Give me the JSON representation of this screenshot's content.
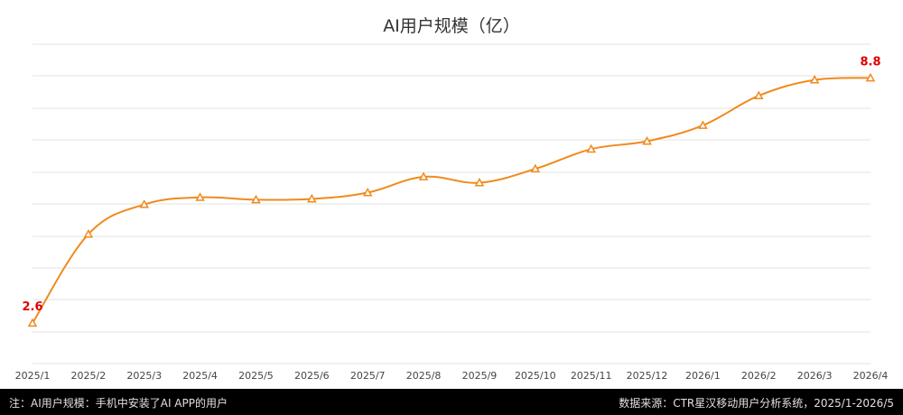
{
  "chart_data": {
    "type": "line",
    "title": "AI用户规模（亿）",
    "xlabel": "",
    "ylabel": "",
    "categories": [
      "2025/1",
      "2025/2",
      "2025/3",
      "2025/4",
      "2025/5",
      "2025/6",
      "2025/7",
      "2025/8",
      "2025/9",
      "2025/10",
      "2025/11",
      "2025/12",
      "2026/1",
      "2026/2",
      "2026/3",
      "2026/4"
    ],
    "series": [
      {
        "values": [
          2.6,
          4.85,
          5.6,
          5.78,
          5.72,
          5.74,
          5.9,
          6.3,
          6.15,
          6.5,
          7.0,
          7.2,
          7.6,
          8.35,
          8.75,
          8.8
        ],
        "color": "#f08a1c",
        "marker": "triangle"
      }
    ],
    "data_labels": [
      {
        "index": 0,
        "text": "2.6"
      },
      {
        "index": 15,
        "text": "8.8"
      }
    ],
    "label_color": "#e00000",
    "ylim": [
      1.6,
      8.9
    ],
    "grid": true,
    "legend": "none"
  },
  "footer": {
    "note": "注：AI用户规模：手机中安装了AI APP的用户",
    "source": "数据来源：CTR星汉移动用户分析系统，2025/1-2026/5"
  }
}
